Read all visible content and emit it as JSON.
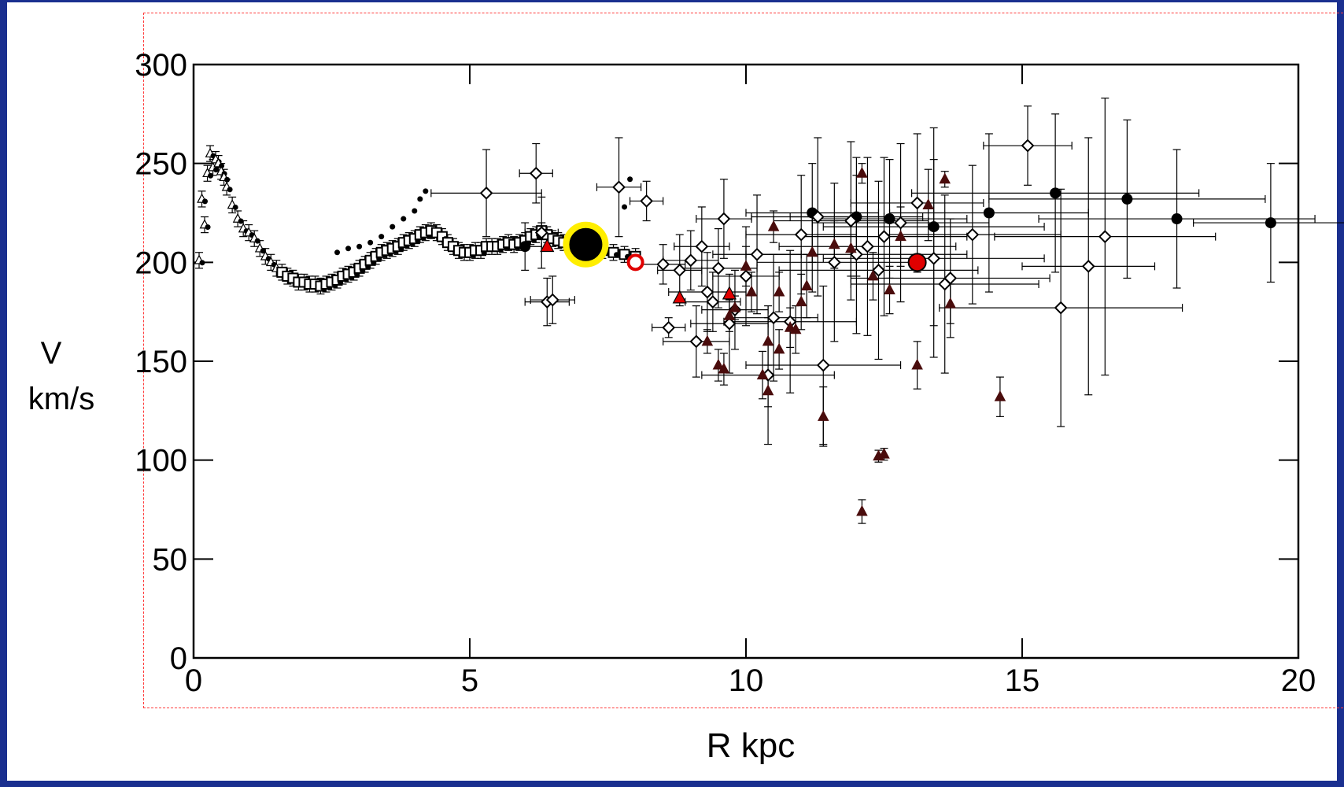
{
  "chart_data": {
    "type": "scatter",
    "xlabel": "R kpc",
    "ylabel_line1": "V",
    "ylabel_line2": "km/s",
    "xlim": [
      0,
      20
    ],
    "ylim": [
      0,
      300
    ],
    "xticks": [
      0,
      5,
      10,
      15,
      20
    ],
    "yticks": [
      0,
      50,
      100,
      150,
      200,
      250,
      300
    ],
    "inner_series": {
      "x": [
        0.1,
        0.15,
        0.2,
        0.25,
        0.3,
        0.35,
        0.4,
        0.45,
        0.5,
        0.55,
        0.6,
        0.7,
        0.8,
        0.9,
        1.0,
        1.1,
        1.2,
        1.3,
        1.4,
        1.5,
        1.6,
        1.7,
        1.8,
        1.9,
        2.0,
        2.1,
        2.2,
        2.3,
        2.4,
        2.5,
        2.6,
        2.7,
        2.8,
        2.9,
        3.0,
        3.1,
        3.2,
        3.3,
        3.4,
        3.5,
        3.6,
        3.7,
        3.8,
        3.9,
        4.0,
        4.1,
        4.2,
        4.3,
        4.4,
        4.5,
        4.6,
        4.7,
        4.8,
        4.9,
        5.0,
        5.1,
        5.2,
        5.3,
        5.4,
        5.5,
        5.6,
        5.7,
        5.8,
        5.9,
        6.0,
        6.1,
        6.2,
        6.3,
        6.4,
        6.5,
        6.6,
        6.7,
        6.8,
        6.9,
        7.0,
        7.2,
        7.4,
        7.6,
        7.8,
        8.0
      ],
      "y": [
        201,
        232,
        219,
        245,
        255,
        248,
        252,
        250,
        246,
        243,
        238,
        229,
        222,
        217,
        215,
        212,
        207,
        203,
        200,
        197,
        195,
        193,
        192,
        190,
        190,
        189,
        189,
        188,
        189,
        190,
        191,
        193,
        194,
        195,
        197,
        199,
        201,
        203,
        205,
        206,
        207,
        208,
        210,
        211,
        212,
        214,
        215,
        216,
        215,
        213,
        210,
        208,
        206,
        205,
        205,
        206,
        206,
        208,
        208,
        208,
        209,
        210,
        209,
        210,
        211,
        213,
        214,
        216,
        214,
        212,
        211,
        210,
        209,
        208,
        207,
        206,
        206,
        205,
        204,
        203
      ]
    },
    "upper_dots": {
      "x": [
        3.0,
        3.2,
        3.4,
        3.6,
        3.8,
        4.0,
        4.1,
        4.2,
        2.8,
        2.6,
        7.8,
        7.9
      ],
      "y": [
        208,
        210,
        213,
        218,
        222,
        226,
        232,
        236,
        207,
        205,
        228,
        242
      ]
    },
    "open_diamonds": {
      "x": [
        5.3,
        6.2,
        6.4,
        6.5,
        6.3,
        7.7,
        8.2,
        8.5,
        8.8,
        9.0,
        9.2,
        9.4,
        9.6,
        9.8,
        10.0,
        10.2,
        10.5,
        10.8,
        11.0,
        11.3,
        11.6,
        11.9,
        12.2,
        12.5,
        12.8,
        13.1,
        13.4,
        13.7,
        14.1,
        15.1,
        15.7,
        16.2,
        16.5,
        8.6,
        9.1,
        9.3,
        9.5,
        9.7,
        10.4,
        11.4,
        12.0,
        12.4,
        13.6
      ],
      "y": [
        235,
        245,
        180,
        181,
        215,
        238,
        231,
        199,
        196,
        201,
        208,
        180,
        222,
        176,
        193,
        204,
        172,
        170,
        214,
        223,
        200,
        221,
        208,
        213,
        220,
        230,
        202,
        192,
        214,
        259,
        177,
        198,
        213,
        167,
        160,
        185,
        197,
        169,
        143,
        148,
        204,
        196,
        189
      ],
      "ex": [
        1.0,
        0.3,
        0.4,
        0.4,
        0.3,
        0.4,
        0.3,
        0.4,
        0.4,
        0.5,
        0.5,
        0.5,
        0.5,
        0.6,
        0.6,
        0.8,
        0.8,
        1.2,
        1.0,
        1.2,
        1.4,
        1.4,
        1.6,
        1.5,
        1.6,
        1.2,
        2.0,
        1.8,
        1.6,
        0.8,
        2.2,
        1.2,
        2.0,
        0.3,
        0.6,
        0.7,
        0.7,
        0.7,
        1.2,
        1.4,
        2.0,
        1.8,
        1.7
      ],
      "ey": [
        22,
        15,
        12,
        12,
        18,
        25,
        10,
        10,
        18,
        15,
        20,
        15,
        20,
        20,
        25,
        30,
        32,
        36,
        30,
        40,
        40,
        40,
        45,
        40,
        40,
        35,
        50,
        30,
        35,
        20,
        60,
        65,
        70,
        5,
        18,
        20,
        20,
        25,
        35,
        40,
        40,
        45,
        45
      ]
    },
    "filled_circles": {
      "x": [
        6.0,
        11.2,
        12.0,
        12.6,
        13.4,
        14.4,
        15.6,
        16.9,
        17.8,
        19.5
      ],
      "y": [
        208,
        225,
        223,
        222,
        218,
        225,
        235,
        232,
        222,
        220
      ],
      "ex": [
        0.3,
        1.2,
        1.2,
        1.4,
        2.0,
        1.8,
        2.6,
        2.5,
        2.5,
        1.4
      ],
      "ey": [
        12,
        25,
        30,
        30,
        50,
        40,
        40,
        40,
        35,
        30
      ]
    },
    "dark_triangles": {
      "x": [
        9.3,
        9.5,
        9.6,
        9.8,
        10.0,
        10.1,
        10.3,
        10.4,
        10.5,
        10.6,
        10.8,
        10.9,
        11.0,
        11.1,
        11.2,
        11.4,
        11.6,
        11.9,
        12.1,
        12.3,
        12.5,
        12.6,
        12.8,
        13.1,
        13.3,
        13.6,
        13.7,
        14.6,
        10.4,
        10.6,
        9.7,
        12.4,
        12.1
      ],
      "y": [
        160,
        148,
        146,
        177,
        198,
        185,
        143,
        160,
        218,
        185,
        167,
        166,
        180,
        188,
        205,
        122,
        209,
        207,
        245,
        193,
        103,
        186,
        213,
        148,
        229,
        242,
        179,
        132,
        135,
        156,
        173,
        102,
        74
      ],
      "ey": [
        6,
        8,
        8,
        6,
        10,
        10,
        12,
        12,
        8,
        10,
        10,
        12,
        14,
        16,
        20,
        15,
        12,
        14,
        5,
        12,
        3,
        12,
        15,
        12,
        18,
        4,
        10,
        10,
        8,
        10,
        8,
        3,
        6
      ]
    },
    "highlight_points": [
      {
        "kind": "sun",
        "x": 7.1,
        "y": 209
      },
      {
        "kind": "open-red-circle",
        "x": 8.0,
        "y": 200
      },
      {
        "kind": "filled-red-circle",
        "x": 13.1,
        "y": 200
      },
      {
        "kind": "red-triangle",
        "x": 6.4,
        "y": 208
      },
      {
        "kind": "red-triangle",
        "x": 8.8,
        "y": 182
      },
      {
        "kind": "red-triangle",
        "x": 9.7,
        "y": 184
      }
    ],
    "colors": {
      "frame": "#1a2f8f",
      "selection": "#ff3b3b",
      "dark_triangle": "#4a0c0c",
      "red": "#e00000",
      "sun_ring": "#ffee00"
    }
  }
}
